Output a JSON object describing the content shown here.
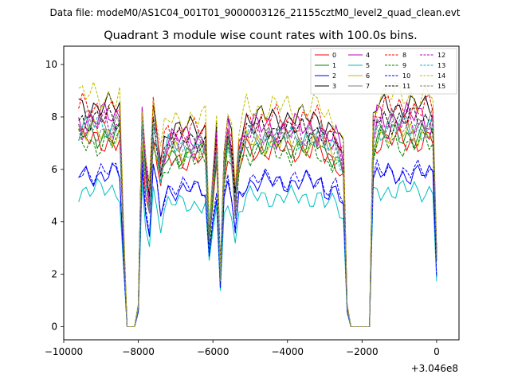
{
  "suptitle": "Data file: modeM0/AS1C04_001T01_9000003126_21155cztM0_level2_quad_clean.evt",
  "chart_data": {
    "type": "line",
    "title": "Quadrant 3 module wise count rates with 100.0s bins.",
    "xlabel": "",
    "ylabel": "",
    "x_offset_label": "+3.046e8",
    "xlim": [
      -10000,
      600
    ],
    "ylim": [
      -0.5,
      10.7
    ],
    "x_ticks": [
      -10000,
      -8000,
      -6000,
      -4000,
      -2000,
      0
    ],
    "x_tick_labels": [
      "−10000",
      "−8000",
      "−6000",
      "−4000",
      "−2000",
      "0"
    ],
    "y_ticks": [
      0,
      2,
      4,
      6,
      8,
      10
    ],
    "y_tick_labels": [
      "0",
      "2",
      "4",
      "6",
      "8",
      "10"
    ],
    "x_start": -9600,
    "x_step": 100,
    "legend_loc": "top-right",
    "series": [
      {
        "name": "0",
        "color": "#ff0000",
        "dash": "solid",
        "level": 7.1,
        "amp": 0.35
      },
      {
        "name": "1",
        "color": "#008000",
        "dash": "solid",
        "level": 7.3,
        "amp": 0.35
      },
      {
        "name": "2",
        "color": "#0000ff",
        "dash": "solid",
        "level": 5.8,
        "amp": 0.3
      },
      {
        "name": "3",
        "color": "#000000",
        "dash": "solid",
        "level": 8.4,
        "amp": 0.35
      },
      {
        "name": "4",
        "color": "#bf00bf",
        "dash": "solid",
        "level": 8.0,
        "amp": 0.4
      },
      {
        "name": "5",
        "color": "#00bfbf",
        "dash": "solid",
        "level": 5.2,
        "amp": 0.3
      },
      {
        "name": "6",
        "color": "#bfbf00",
        "dash": "solid",
        "level": 7.4,
        "amp": 0.35
      },
      {
        "name": "7",
        "color": "#808080",
        "dash": "solid",
        "level": 7.8,
        "amp": 0.35
      },
      {
        "name": "8",
        "color": "#ff0000",
        "dash": "dashed",
        "level": 8.3,
        "amp": 0.4
      },
      {
        "name": "9",
        "color": "#008000",
        "dash": "dashed",
        "level": 7.0,
        "amp": 0.35
      },
      {
        "name": "10",
        "color": "#0000ff",
        "dash": "dashed",
        "level": 5.9,
        "amp": 0.3
      },
      {
        "name": "11",
        "color": "#000000",
        "dash": "dashed",
        "level": 7.9,
        "amp": 0.35
      },
      {
        "name": "12",
        "color": "#bf00bf",
        "dash": "dashed",
        "level": 7.7,
        "amp": 0.4
      },
      {
        "name": "13",
        "color": "#00bfbf",
        "dash": "dashed",
        "level": 7.6,
        "amp": 0.35
      },
      {
        "name": "14",
        "color": "#bfbf00",
        "dash": "dashed",
        "level": 8.8,
        "amp": 0.4
      },
      {
        "name": "15",
        "color": "#808080",
        "dash": "dashed",
        "level": 7.5,
        "amp": 0.35
      }
    ],
    "profile": [
      1.0,
      1.0,
      1.0,
      1.0,
      1.0,
      1.0,
      1.0,
      1.0,
      1.0,
      1.0,
      1.0,
      1.0,
      0.45,
      0.0,
      0.0,
      0.0,
      0.1,
      1.0,
      0.75,
      0.6,
      1.0,
      0.9,
      0.75,
      0.85,
      0.9,
      0.9,
      0.9,
      0.9,
      0.9,
      0.9,
      0.9,
      0.9,
      0.9,
      0.9,
      0.9,
      0.45,
      0.7,
      0.9,
      0.25,
      0.8,
      0.95,
      0.85,
      0.6,
      0.85,
      0.9,
      0.95,
      0.95,
      0.95,
      0.95,
      0.95,
      0.95,
      0.95,
      0.95,
      0.95,
      0.95,
      0.95,
      0.95,
      0.95,
      0.95,
      0.95,
      0.95,
      0.95,
      0.95,
      0.95,
      0.95,
      0.95,
      0.9,
      0.9,
      0.9,
      0.9,
      0.85,
      0.8,
      0.1,
      0.0,
      0.0,
      0.0,
      0.0,
      0.0,
      0.0,
      0.95,
      1.0,
      1.0,
      1.0,
      1.0,
      1.0,
      1.0,
      1.0,
      1.0,
      1.0,
      1.0,
      1.0,
      1.0,
      1.0,
      1.0,
      1.0,
      1.0,
      0.35
    ]
  }
}
